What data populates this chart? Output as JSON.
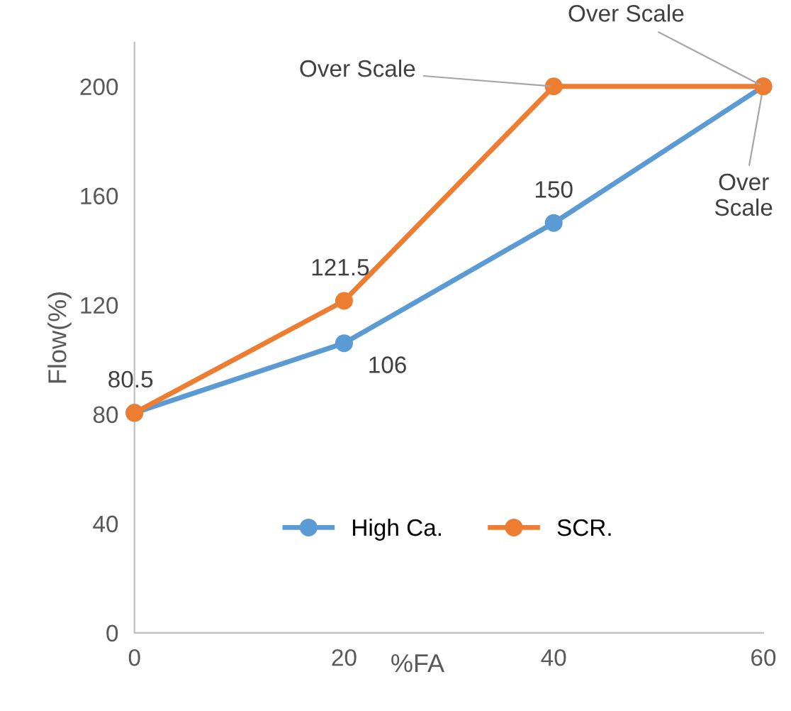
{
  "chart_data": {
    "type": "line",
    "xlabel": "%FA",
    "ylabel": "Flow(%)",
    "x": [
      0,
      20,
      40,
      60
    ],
    "series": [
      {
        "name": "High Ca.",
        "color": "#5b9bd5",
        "values": [
          80.5,
          106,
          150,
          200
        ],
        "value_labels": [
          null,
          "106",
          "150",
          "Over Scale"
        ]
      },
      {
        "name": "SCR.",
        "color": "#ed7d31",
        "values": [
          80.5,
          121.5,
          200,
          200
        ],
        "value_labels": [
          "80.5",
          "121.5",
          "Over Scale",
          "Over Scale"
        ]
      }
    ],
    "xlim": [
      0,
      60
    ],
    "xticks": [
      0,
      20,
      40,
      60
    ],
    "ylim": [
      0,
      216
    ],
    "yticks": [
      0,
      40,
      80,
      120,
      160,
      200
    ],
    "grid": false,
    "legend": "bottom",
    "marker": "circle",
    "line_style": "solid"
  }
}
